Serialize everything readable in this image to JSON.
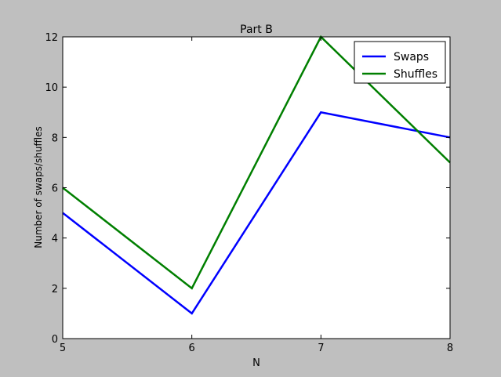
{
  "chart_data": {
    "type": "line",
    "title": "Part B",
    "xlabel": "N",
    "ylabel": "Number of swaps/shuffles",
    "x": [
      5,
      6,
      7,
      8
    ],
    "xlim": [
      5,
      8
    ],
    "ylim": [
      0,
      12
    ],
    "xticks": [
      "5",
      "6",
      "7",
      "8"
    ],
    "yticks": [
      "0",
      "2",
      "4",
      "6",
      "8",
      "10",
      "12"
    ],
    "grid": false,
    "legend_position": "top-right",
    "series": [
      {
        "name": "Swaps",
        "values": [
          5,
          1,
          9,
          8
        ],
        "color": "#0000ff"
      },
      {
        "name": "Shuffles",
        "values": [
          6,
          2,
          12,
          7
        ],
        "color": "#007f00"
      }
    ]
  }
}
